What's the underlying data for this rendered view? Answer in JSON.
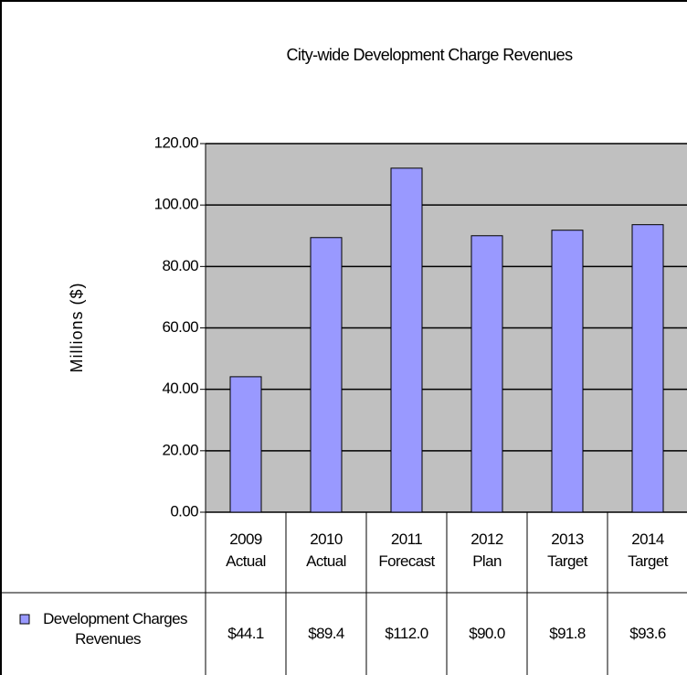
{
  "chart_data": {
    "type": "bar",
    "title": "City-wide Development Charge Revenues",
    "y_label": "Millions ($)",
    "categories": [
      "2009 Actual",
      "2010 Actual",
      "2011 Forecast",
      "2012 Plan",
      "2013 Target",
      "2014 Target"
    ],
    "series": [
      {
        "name": "Development Charges Revenues",
        "color": "#9999ff",
        "values": [
          44.1,
          89.4,
          112.0,
          90.0,
          91.8,
          93.6
        ],
        "value_labels": [
          "$44.1",
          "$89.4",
          "$112.0",
          "$90.0",
          "$91.8",
          "$93.6"
        ]
      }
    ],
    "ylim": [
      0,
      120
    ],
    "yticks": [
      {
        "value": 0,
        "label": "0.00"
      },
      {
        "value": 20,
        "label": "20.00"
      },
      {
        "value": 40,
        "label": "40.00"
      },
      {
        "value": 60,
        "label": "60.00"
      },
      {
        "value": 80,
        "label": "80.00"
      },
      {
        "value": 100,
        "label": "100.00"
      },
      {
        "value": 120,
        "label": "120.00"
      }
    ],
    "grid": true,
    "plot_background": "#c0c0c0"
  }
}
